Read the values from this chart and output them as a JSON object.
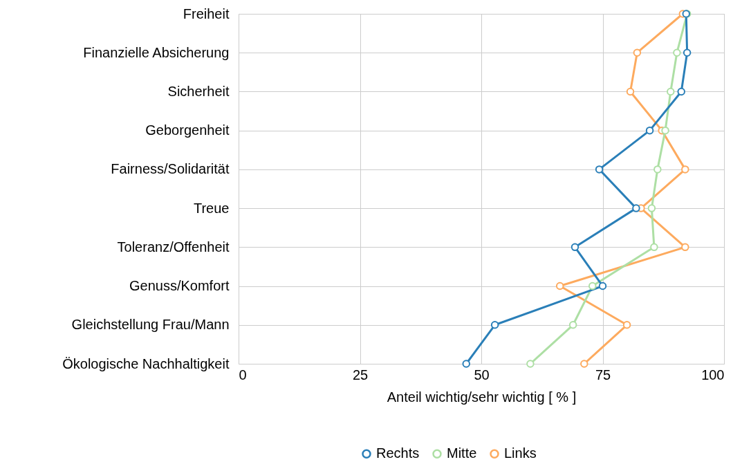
{
  "chart_data": {
    "type": "line",
    "orientation": "horizontal",
    "xlabel": "Anteil wichtig/sehr wichtig [ % ]",
    "categories": [
      "Freiheit",
      "Finanzielle Absicherung",
      "Sicherheit",
      "Geborgenheit",
      "Fairness/Solidarität",
      "Treue",
      "Toleranz/Offenheit",
      "Genuss/Komfort",
      "Gleichstellung Frau/Mann",
      "Ökologische Nachhaltigkeit"
    ],
    "series": [
      {
        "name": "Rechts",
        "color": "#2a7fb8",
        "values": [
          92.2,
          92.4,
          91.2,
          84.7,
          74.3,
          81.9,
          69.3,
          75.0,
          52.8,
          46.9
        ]
      },
      {
        "name": "Mitte",
        "color": "#addfa4",
        "values": [
          92.4,
          90.3,
          89.0,
          87.9,
          86.3,
          85.1,
          85.6,
          72.9,
          68.9,
          60.1
        ]
      },
      {
        "name": "Links",
        "color": "#fdaa5e",
        "values": [
          91.5,
          82.1,
          80.7,
          87.2,
          92.0,
          82.9,
          92.0,
          66.2,
          80.0,
          71.2
        ]
      }
    ],
    "xlim": [
      0,
      100
    ],
    "xticks": [
      0,
      25,
      50,
      75,
      100
    ],
    "grid": true,
    "legend": "bottom",
    "marker": "circle",
    "line_style": "solid"
  }
}
